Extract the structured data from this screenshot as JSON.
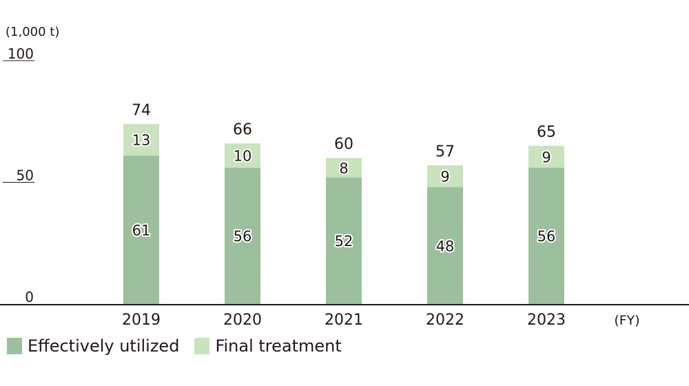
{
  "chart_data": {
    "type": "bar",
    "stacked": true,
    "unit_label": "(1,000 t)",
    "x_unit_label": "(FY)",
    "categories": [
      "2019",
      "2020",
      "2021",
      "2022",
      "2023"
    ],
    "series": [
      {
        "name": "Effectively utilized",
        "values": [
          61,
          56,
          52,
          48,
          56
        ],
        "color": "#9cbf9e"
      },
      {
        "name": "Final treatment",
        "values": [
          13,
          10,
          8,
          9,
          9
        ],
        "color": "#c9e3bc"
      }
    ],
    "totals": [
      74,
      66,
      60,
      57,
      65
    ],
    "y_ticks": [
      0,
      50,
      100
    ],
    "ylim": [
      0,
      100
    ],
    "grid": false,
    "legend_position": "bottom-left"
  }
}
